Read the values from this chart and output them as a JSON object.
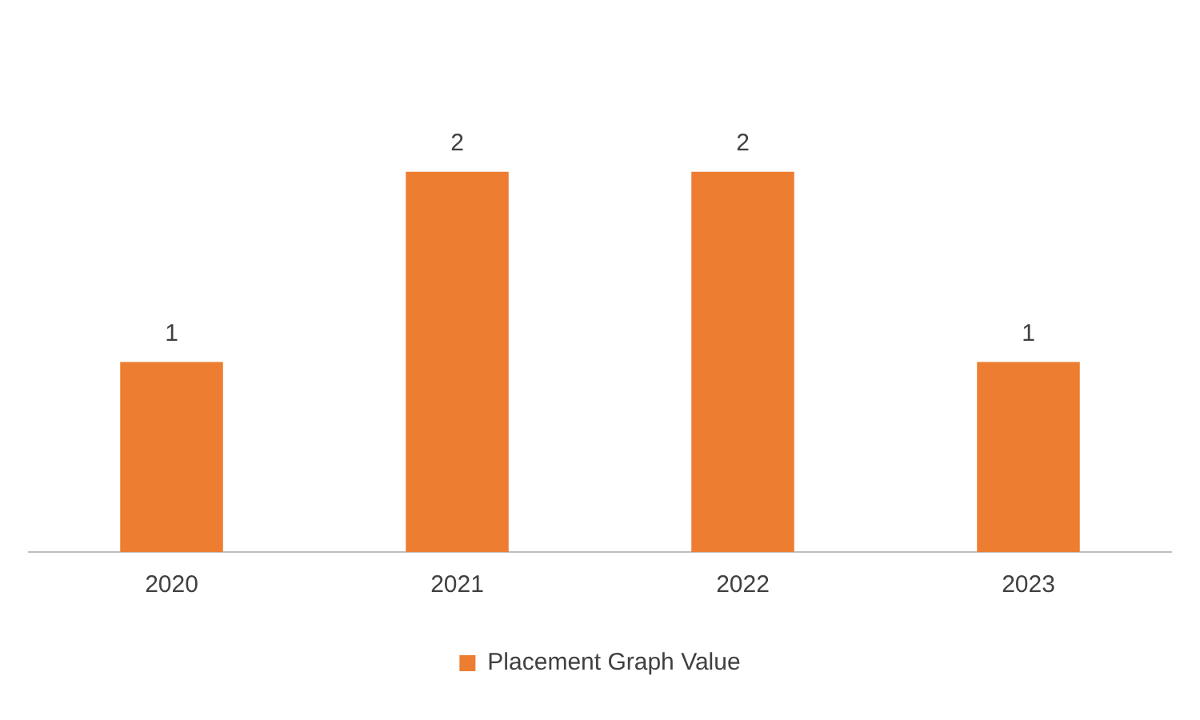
{
  "chart_data": {
    "type": "bar",
    "categories": [
      "2020",
      "2021",
      "2022",
      "2023"
    ],
    "series": [
      {
        "name": "Placement Graph Value",
        "color": "#ed7d31",
        "values": [
          1,
          2,
          2,
          1
        ]
      }
    ],
    "data_labels": true,
    "legend": "bottom",
    "grid": false
  }
}
